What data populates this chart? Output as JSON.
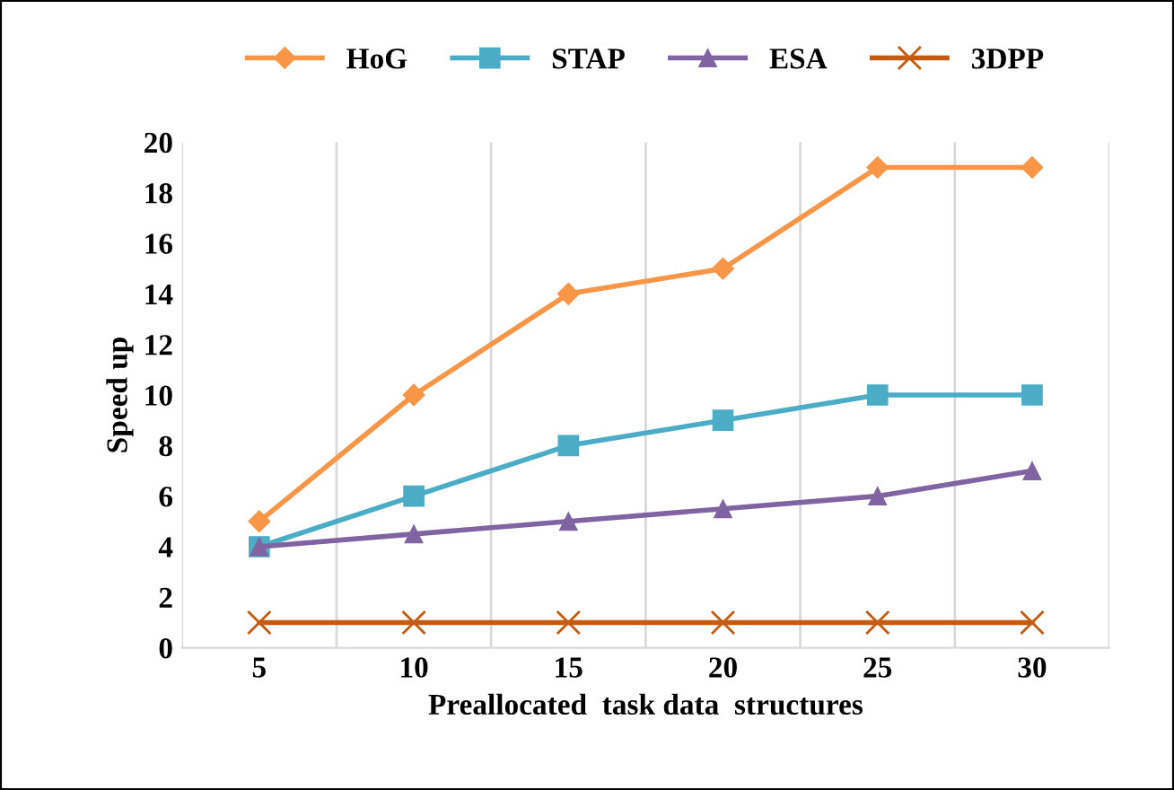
{
  "chart_data": {
    "type": "line",
    "xlabel": "Preallocated  task data  structures",
    "ylabel": "Speed up",
    "categories": [
      "5",
      "10",
      "15",
      "20",
      "25",
      "30"
    ],
    "ylim": [
      0,
      20
    ],
    "yticks": [
      0,
      2,
      4,
      6,
      8,
      10,
      12,
      14,
      16,
      18,
      20
    ],
    "grid": "x",
    "legend": "top",
    "series": [
      {
        "name": "HoG",
        "color": "#f79646",
        "marker": "diamond",
        "values": [
          5,
          10,
          14,
          15,
          19,
          19
        ]
      },
      {
        "name": "STAP",
        "color": "#4bacc6",
        "marker": "square",
        "values": [
          4,
          6,
          8,
          9,
          10,
          10
        ]
      },
      {
        "name": "ESA",
        "color": "#8064a2",
        "marker": "triangle",
        "values": [
          4,
          4.5,
          5,
          5.5,
          6,
          7
        ]
      },
      {
        "name": "3DPP",
        "color": "#c55a11",
        "marker": "cross",
        "values": [
          1,
          1,
          1,
          1,
          1,
          1
        ]
      }
    ]
  }
}
